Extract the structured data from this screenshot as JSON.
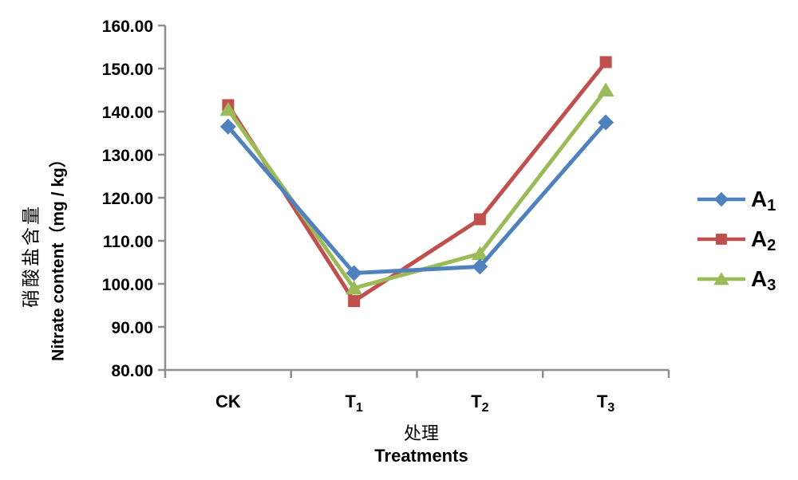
{
  "chart_data": {
    "type": "line",
    "title": "",
    "categories": [
      "CK",
      "T1",
      "T2",
      "T3"
    ],
    "category_display": [
      {
        "base": "CK",
        "sub": ""
      },
      {
        "base": "T",
        "sub": "1"
      },
      {
        "base": "T",
        "sub": "2"
      },
      {
        "base": "T",
        "sub": "3"
      }
    ],
    "series": [
      {
        "name": "A1",
        "label_base": "A",
        "label_sub": "1",
        "color": "#4F81BD",
        "marker": "diamond",
        "values": [
          136.5,
          102.5,
          104,
          137.5
        ]
      },
      {
        "name": "A2",
        "label_base": "A",
        "label_sub": "2",
        "color": "#C0504D",
        "marker": "square",
        "values": [
          141.5,
          96,
          115,
          151.5
        ]
      },
      {
        "name": "A3",
        "label_base": "A",
        "label_sub": "3",
        "color": "#9BBB59",
        "marker": "triangle",
        "values": [
          140.5,
          99,
          107,
          145
        ]
      }
    ],
    "draw_order": [
      1,
      2,
      0
    ],
    "ylim": [
      80,
      160
    ],
    "ytick_step": 10,
    "ytick_labels": [
      "160.00",
      "150.00",
      "140.00",
      "130.00",
      "120.00",
      "110.00",
      "100.00",
      "90.00",
      "80.00"
    ],
    "ylabel_cn": "硝酸盐含量",
    "ylabel_en": "Nitrate content（mg / kg）",
    "xlabel_cn": "处理",
    "xlabel_en": "Treatments",
    "legend_position": "right",
    "grid": false,
    "axis_color": "#8E8E8E",
    "text_color": "#000000",
    "background": "#FFFFFF"
  }
}
